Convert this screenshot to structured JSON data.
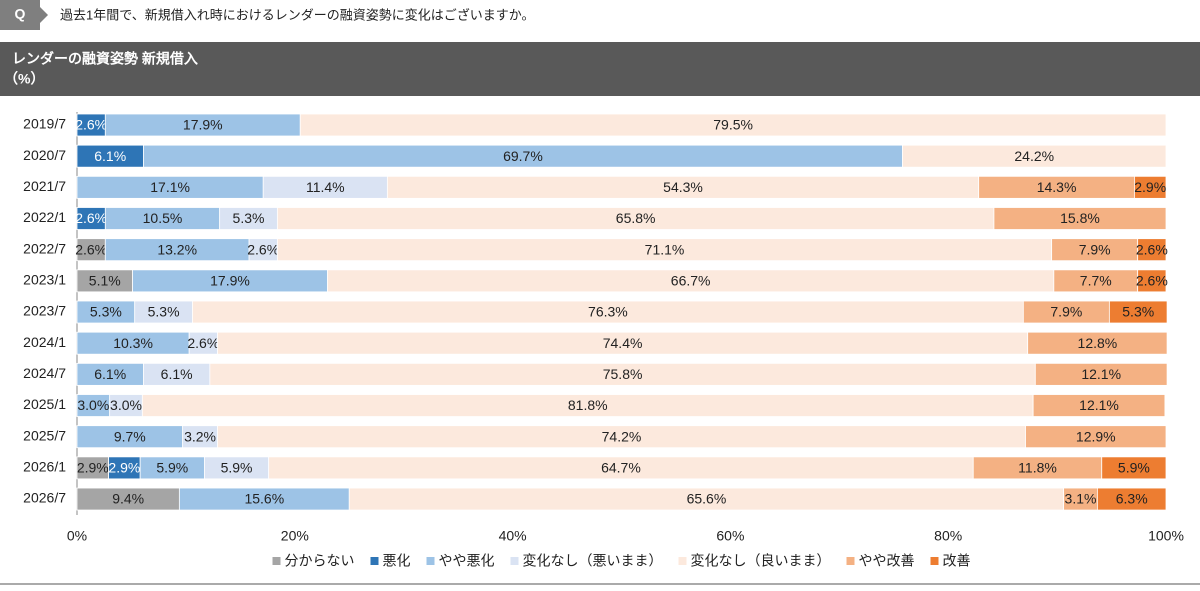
{
  "question": {
    "badge": "Q",
    "text": "過去1年間で、新規借入れ時におけるレンダーの融資姿勢に変化はございますか。"
  },
  "chart_data": {
    "type": "bar",
    "orientation": "horizontal",
    "stacked": true,
    "title": "レンダーの融資姿勢 新規借入",
    "subtitle": "（%）",
    "categories": [
      "2019/7",
      "2020/7",
      "2021/7",
      "2022/1",
      "2022/7",
      "2023/1",
      "2023/7",
      "2024/1",
      "2024/7",
      "2025/1",
      "2025/7",
      "2026/1",
      "2026/7"
    ],
    "series": [
      {
        "name": "分からない",
        "color": "#a5a5a5",
        "values": [
          null,
          null,
          null,
          null,
          2.6,
          5.1,
          null,
          null,
          null,
          null,
          null,
          2.9,
          9.4
        ],
        "value_labels": [
          null,
          null,
          null,
          null,
          "2.6%",
          "5.1%",
          null,
          null,
          null,
          null,
          null,
          "2.9%",
          "9.4%"
        ]
      },
      {
        "name": "悪化",
        "color": "#2e75b6",
        "values": [
          2.6,
          6.1,
          null,
          2.6,
          null,
          null,
          null,
          null,
          null,
          null,
          null,
          2.9,
          null
        ],
        "value_labels": [
          "2.6%",
          "6.1%",
          null,
          "2.6%",
          null,
          null,
          null,
          null,
          null,
          null,
          null,
          "2.9%",
          null
        ]
      },
      {
        "name": "やや悪化",
        "color": "#9dc3e6",
        "values": [
          17.9,
          69.7,
          17.1,
          10.5,
          13.2,
          17.9,
          5.3,
          10.3,
          6.1,
          3.0,
          9.7,
          5.9,
          15.6
        ],
        "value_labels": [
          "17.9%",
          "69.7%",
          "17.1%",
          "10.5%",
          "13.2%",
          "17.9%",
          "5.3%",
          "10.3%",
          "6.1%",
          "3.0%",
          "9.7%",
          "5.9%",
          "15.6%"
        ]
      },
      {
        "name": "変化なし（悪いまま）",
        "color": "#dae3f3",
        "values": [
          null,
          null,
          11.4,
          5.3,
          2.6,
          null,
          5.3,
          2.6,
          6.1,
          3.0,
          3.2,
          5.9,
          null
        ],
        "value_labels": [
          null,
          null,
          "11.4%",
          "5.3%",
          "2.6%",
          null,
          "5.3%",
          "2.6%",
          "6.1%",
          "3.0%",
          "3.2%",
          "5.9%",
          null
        ]
      },
      {
        "name": "変化なし（良いまま）",
        "color": "#fce9dd",
        "values": [
          79.5,
          24.2,
          54.3,
          65.8,
          71.1,
          66.7,
          76.3,
          74.4,
          75.8,
          81.8,
          74.2,
          64.7,
          65.6
        ],
        "value_labels": [
          "79.5%",
          "24.2%",
          "54.3%",
          "65.8%",
          "71.1%",
          "66.7%",
          "76.3%",
          "74.4%",
          "75.8%",
          "81.8%",
          "74.2%",
          "64.7%",
          "65.6%"
        ]
      },
      {
        "name": "やや改善",
        "color": "#f4b183",
        "values": [
          null,
          null,
          14.3,
          15.8,
          7.9,
          7.7,
          7.9,
          12.8,
          12.1,
          12.1,
          12.9,
          11.8,
          3.1
        ],
        "value_labels": [
          null,
          null,
          "14.3%",
          "15.8%",
          "7.9%",
          "7.7%",
          "7.9%",
          "12.8%",
          "12.1%",
          "12.1%",
          "12.9%",
          "11.8%",
          "3.1%"
        ]
      },
      {
        "name": "改善",
        "color": "#ed7d31",
        "values": [
          null,
          null,
          2.9,
          null,
          2.6,
          2.6,
          5.3,
          null,
          null,
          null,
          null,
          5.9,
          6.3
        ],
        "value_labels": [
          null,
          null,
          "2.9%",
          null,
          "2.6%",
          "2.6%",
          "5.3%",
          null,
          null,
          null,
          null,
          "5.9%",
          "6.3%"
        ]
      }
    ],
    "xlim": [
      0,
      100
    ],
    "xticks": [
      {
        "value": 0,
        "label": "0%"
      },
      {
        "value": 20,
        "label": "20%"
      },
      {
        "value": 40,
        "label": "40%"
      },
      {
        "value": 60,
        "label": "60%"
      },
      {
        "value": 80,
        "label": "80%"
      },
      {
        "value": 100,
        "label": "100%"
      }
    ],
    "grid": false,
    "legend": "bottom"
  }
}
